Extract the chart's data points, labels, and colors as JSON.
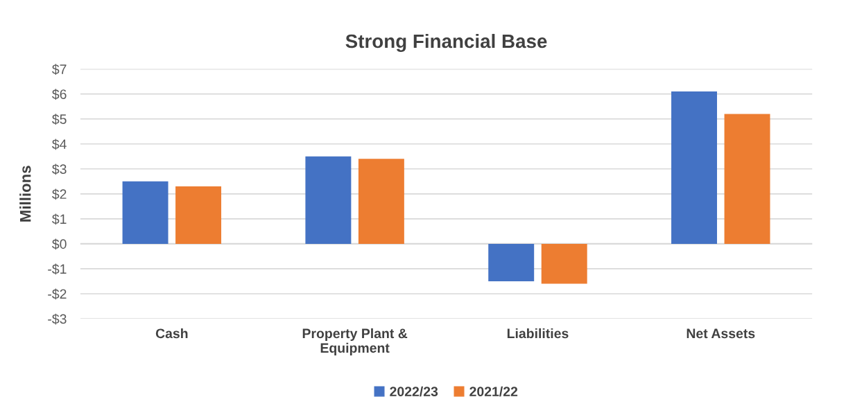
{
  "chart_data": {
    "type": "bar",
    "title": "Strong Financial Base",
    "ylabel": "Millions",
    "categories": [
      "Cash",
      "Property Plant &\nEquipment",
      "Liabilities",
      "Net Assets"
    ],
    "series": [
      {
        "name": "2022/23",
        "color": "#4472c4",
        "values": [
          2.5,
          3.5,
          -1.5,
          6.1
        ]
      },
      {
        "name": "2021/22",
        "color": "#ed7d31",
        "values": [
          2.3,
          3.4,
          -1.6,
          5.2
        ]
      }
    ],
    "ylim": [
      -3,
      7
    ],
    "yticks": [
      {
        "value": -3,
        "label": "-$3"
      },
      {
        "value": -2,
        "label": "-$2"
      },
      {
        "value": -1,
        "label": "-$1"
      },
      {
        "value": 0,
        "label": "$0"
      },
      {
        "value": 1,
        "label": "$1"
      },
      {
        "value": 2,
        "label": "$2"
      },
      {
        "value": 3,
        "label": "$3"
      },
      {
        "value": 4,
        "label": "$4"
      },
      {
        "value": 5,
        "label": "$5"
      },
      {
        "value": 6,
        "label": "$6"
      },
      {
        "value": 7,
        "label": "$7"
      }
    ],
    "grid": "y",
    "legend": "bottom"
  }
}
